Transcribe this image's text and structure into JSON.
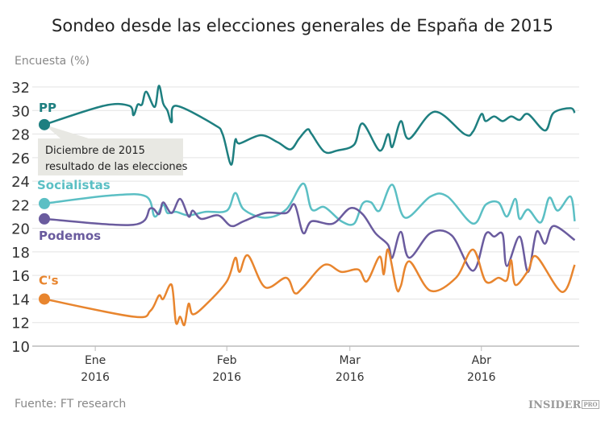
{
  "chart_data": {
    "type": "line",
    "title": "Sondeo desde las elecciones generales de España de 2015",
    "ylabel": "Encuesta (%)",
    "ylim": [
      10,
      32
    ],
    "yticks": [
      10,
      12,
      14,
      16,
      18,
      20,
      22,
      24,
      26,
      28,
      30,
      32
    ],
    "xticks": [
      {
        "date": "2016-01-01",
        "label": [
          "Ene",
          "2016"
        ]
      },
      {
        "date": "2016-02-01",
        "label": [
          "Feb",
          "2016"
        ]
      },
      {
        "date": "2016-03-01",
        "label": [
          "Mar",
          "2016"
        ]
      },
      {
        "date": "2016-04-01",
        "label": [
          "Abr",
          "2016"
        ]
      }
    ],
    "grid": true,
    "annotation": {
      "date": "2015-12-20",
      "lines": [
        "Diciembre de 2015",
        "resultado de las elecciones"
      ]
    },
    "series": [
      {
        "name": "PP",
        "color": "#1e7f80",
        "points": [
          [
            "2015-12-20",
            28.8
          ],
          [
            "2016-01-03",
            30.4
          ],
          [
            "2016-01-09",
            30.4
          ],
          [
            "2016-01-10",
            29.6
          ],
          [
            "2016-01-11",
            30.5
          ],
          [
            "2016-01-12",
            30.5
          ],
          [
            "2016-01-13",
            31.6
          ],
          [
            "2016-01-15",
            30.3
          ],
          [
            "2016-01-16",
            32.1
          ],
          [
            "2016-01-17",
            30.6
          ],
          [
            "2016-01-18",
            30.0
          ],
          [
            "2016-01-19",
            29.0
          ],
          [
            "2016-01-20",
            30.4
          ],
          [
            "2016-01-29",
            28.8
          ],
          [
            "2016-01-31",
            28.0
          ],
          [
            "2016-02-02",
            25.4
          ],
          [
            "2016-02-03",
            27.5
          ],
          [
            "2016-02-04",
            27.2
          ],
          [
            "2016-02-09",
            27.9
          ],
          [
            "2016-02-13",
            27.3
          ],
          [
            "2016-02-16",
            26.7
          ],
          [
            "2016-02-18",
            27.6
          ],
          [
            "2016-02-20",
            28.4
          ],
          [
            "2016-02-21",
            28.0
          ],
          [
            "2016-02-24",
            26.5
          ],
          [
            "2016-02-27",
            26.6
          ],
          [
            "2016-03-02",
            27.1
          ],
          [
            "2016-03-04",
            28.9
          ],
          [
            "2016-03-08",
            26.6
          ],
          [
            "2016-03-10",
            28.0
          ],
          [
            "2016-03-11",
            26.9
          ],
          [
            "2016-03-13",
            29.1
          ],
          [
            "2016-03-15",
            27.6
          ],
          [
            "2016-03-21",
            29.9
          ],
          [
            "2016-03-28",
            28.0
          ],
          [
            "2016-03-30",
            28.2
          ],
          [
            "2016-04-01",
            29.7
          ],
          [
            "2016-04-02",
            29.1
          ],
          [
            "2016-04-04",
            29.5
          ],
          [
            "2016-04-06",
            29.1
          ],
          [
            "2016-04-08",
            29.5
          ],
          [
            "2016-04-10",
            29.2
          ],
          [
            "2016-04-12",
            29.7
          ],
          [
            "2016-04-16",
            28.3
          ],
          [
            "2016-04-18",
            29.8
          ],
          [
            "2016-04-22",
            30.2
          ],
          [
            "2016-04-23",
            29.8
          ]
        ]
      },
      {
        "name": "Socialistas",
        "color": "#5bbfc4",
        "points": [
          [
            "2015-12-20",
            22.1
          ],
          [
            "2016-01-05",
            22.8
          ],
          [
            "2016-01-13",
            22.7
          ],
          [
            "2016-01-15",
            21.0
          ],
          [
            "2016-01-17",
            22.0
          ],
          [
            "2016-01-18",
            21.3
          ],
          [
            "2016-01-20",
            21.4
          ],
          [
            "2016-01-23",
            21.1
          ],
          [
            "2016-01-27",
            21.4
          ],
          [
            "2016-02-01",
            21.5
          ],
          [
            "2016-02-03",
            23.0
          ],
          [
            "2016-02-05",
            21.6
          ],
          [
            "2016-02-10",
            20.9
          ],
          [
            "2016-02-15",
            21.6
          ],
          [
            "2016-02-19",
            23.8
          ],
          [
            "2016-02-21",
            21.6
          ],
          [
            "2016-02-24",
            21.8
          ],
          [
            "2016-02-28",
            20.6
          ],
          [
            "2016-03-02",
            20.4
          ],
          [
            "2016-03-04",
            22.1
          ],
          [
            "2016-03-06",
            22.2
          ],
          [
            "2016-03-08",
            21.5
          ],
          [
            "2016-03-11",
            23.7
          ],
          [
            "2016-03-14",
            20.9
          ],
          [
            "2016-03-20",
            22.7
          ],
          [
            "2016-03-24",
            22.7
          ],
          [
            "2016-03-30",
            20.4
          ],
          [
            "2016-04-02",
            22.0
          ],
          [
            "2016-04-05",
            22.2
          ],
          [
            "2016-04-07",
            21.0
          ],
          [
            "2016-04-09",
            22.5
          ],
          [
            "2016-04-10",
            20.8
          ],
          [
            "2016-04-12",
            21.6
          ],
          [
            "2016-04-15",
            20.5
          ],
          [
            "2016-04-17",
            22.6
          ],
          [
            "2016-04-19",
            21.5
          ],
          [
            "2016-04-22",
            22.7
          ],
          [
            "2016-04-23",
            20.6
          ]
        ]
      },
      {
        "name": "Podemos",
        "color": "#6a5b9e",
        "points": [
          [
            "2015-12-20",
            20.8
          ],
          [
            "2016-01-10",
            20.3
          ],
          [
            "2016-01-14",
            21.7
          ],
          [
            "2016-01-16",
            21.2
          ],
          [
            "2016-01-17",
            22.2
          ],
          [
            "2016-01-19",
            21.3
          ],
          [
            "2016-01-21",
            22.5
          ],
          [
            "2016-01-23",
            21.0
          ],
          [
            "2016-01-24",
            21.5
          ],
          [
            "2016-01-26",
            20.8
          ],
          [
            "2016-01-30",
            21.1
          ],
          [
            "2016-02-02",
            20.2
          ],
          [
            "2016-02-05",
            20.6
          ],
          [
            "2016-02-10",
            21.3
          ],
          [
            "2016-02-15",
            21.3
          ],
          [
            "2016-02-17",
            22.0
          ],
          [
            "2016-02-19",
            19.6
          ],
          [
            "2016-02-21",
            20.6
          ],
          [
            "2016-02-26",
            20.4
          ],
          [
            "2016-03-01",
            21.7
          ],
          [
            "2016-03-04",
            21.2
          ],
          [
            "2016-03-07",
            19.6
          ],
          [
            "2016-03-10",
            18.6
          ],
          [
            "2016-03-11",
            17.5
          ],
          [
            "2016-03-13",
            19.7
          ],
          [
            "2016-03-15",
            17.5
          ],
          [
            "2016-03-20",
            19.6
          ],
          [
            "2016-03-25",
            19.4
          ],
          [
            "2016-03-30",
            16.4
          ],
          [
            "2016-04-02",
            19.5
          ],
          [
            "2016-04-04",
            19.3
          ],
          [
            "2016-04-06",
            19.5
          ],
          [
            "2016-04-07",
            16.8
          ],
          [
            "2016-04-10",
            19.3
          ],
          [
            "2016-04-12",
            16.3
          ],
          [
            "2016-04-14",
            19.7
          ],
          [
            "2016-04-16",
            18.7
          ],
          [
            "2016-04-18",
            20.2
          ],
          [
            "2016-04-23",
            19.0
          ]
        ]
      },
      {
        "name": "C's",
        "color": "#e8852e",
        "points": [
          [
            "2015-12-20",
            14.0
          ],
          [
            "2016-01-10",
            12.5
          ],
          [
            "2016-01-14",
            13.0
          ],
          [
            "2016-01-16",
            14.3
          ],
          [
            "2016-01-17",
            14.0
          ],
          [
            "2016-01-19",
            15.2
          ],
          [
            "2016-01-20",
            12.0
          ],
          [
            "2016-01-21",
            12.5
          ],
          [
            "2016-01-22",
            11.8
          ],
          [
            "2016-01-23",
            13.6
          ],
          [
            "2016-01-24",
            12.7
          ],
          [
            "2016-01-27",
            13.5
          ],
          [
            "2016-02-01",
            15.5
          ],
          [
            "2016-02-03",
            17.5
          ],
          [
            "2016-02-04",
            16.3
          ],
          [
            "2016-02-06",
            17.7
          ],
          [
            "2016-02-10",
            15.0
          ],
          [
            "2016-02-15",
            15.8
          ],
          [
            "2016-02-17",
            14.5
          ],
          [
            "2016-02-19",
            15.0
          ],
          [
            "2016-02-24",
            16.9
          ],
          [
            "2016-02-28",
            16.3
          ],
          [
            "2016-03-03",
            16.5
          ],
          [
            "2016-03-05",
            15.5
          ],
          [
            "2016-03-08",
            17.6
          ],
          [
            "2016-03-09",
            16.1
          ],
          [
            "2016-03-10",
            18.2
          ],
          [
            "2016-03-12",
            14.9
          ],
          [
            "2016-03-13",
            15.1
          ],
          [
            "2016-03-15",
            17.2
          ],
          [
            "2016-03-20",
            14.7
          ],
          [
            "2016-03-26",
            15.8
          ],
          [
            "2016-03-30",
            18.2
          ],
          [
            "2016-04-02",
            15.5
          ],
          [
            "2016-04-05",
            15.8
          ],
          [
            "2016-04-07",
            15.6
          ],
          [
            "2016-04-08",
            17.3
          ],
          [
            "2016-04-09",
            15.2
          ],
          [
            "2016-04-12",
            16.4
          ],
          [
            "2016-04-14",
            17.6
          ],
          [
            "2016-04-20",
            14.6
          ],
          [
            "2016-04-23",
            16.9
          ]
        ]
      }
    ]
  },
  "source": "Fuente: FT research",
  "logo": {
    "text": "INSIDER",
    "suffix": "PRO"
  }
}
